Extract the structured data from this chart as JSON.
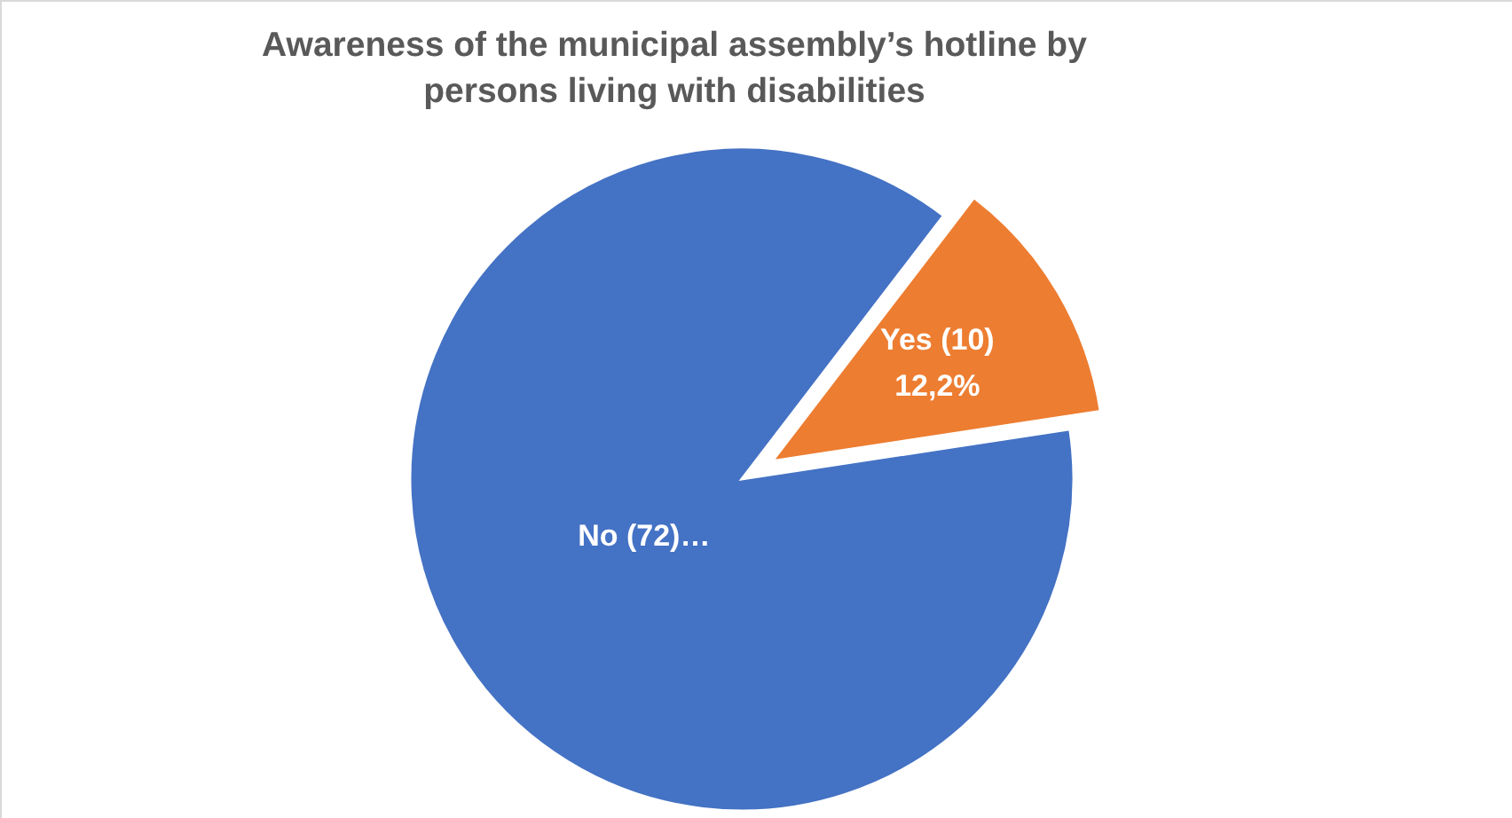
{
  "chart_data": {
    "type": "pie",
    "title": [
      "Awareness of the municipal assembly’s hotline by",
      "persons living with disabilities"
    ],
    "categories": [
      "No (72)…",
      "Yes (10)"
    ],
    "values": [
      87.8,
      12.2
    ],
    "colors": [
      "#4472c4",
      "#ed7d31"
    ],
    "value_labels": [
      null,
      "12,2%"
    ],
    "legend": false
  }
}
